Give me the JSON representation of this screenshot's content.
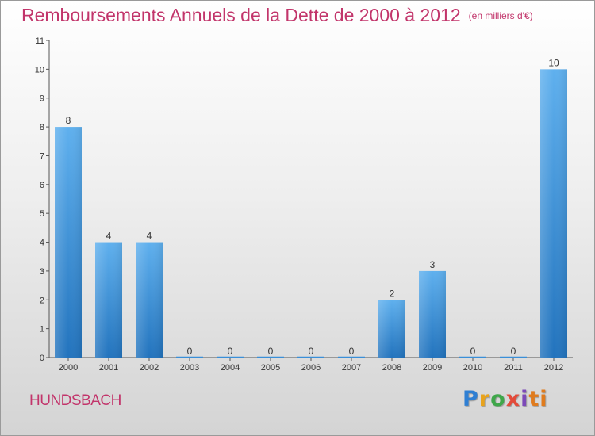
{
  "chart_data": {
    "type": "bar",
    "title": "Remboursements Annuels de la Dette de 2000 à 2012",
    "subtitle": "(en milliers d'€)",
    "categories": [
      "2000",
      "2001",
      "2002",
      "2003",
      "2004",
      "2005",
      "2006",
      "2007",
      "2008",
      "2009",
      "2010",
      "2011",
      "2012"
    ],
    "values": [
      8,
      4,
      4,
      0,
      0,
      0,
      0,
      0,
      2,
      3,
      0,
      0,
      10
    ],
    "data_labels": [
      "8",
      "4",
      "4",
      "0",
      "0",
      "0",
      "0",
      "0",
      "2",
      "3",
      "0",
      "0",
      "10"
    ],
    "yticks": [
      "0",
      "1",
      "2",
      "3",
      "4",
      "5",
      "6",
      "7",
      "8",
      "9",
      "10",
      "11"
    ],
    "ylim": [
      0,
      11
    ],
    "grid": false,
    "bar_color": "#3a8fd8"
  },
  "footer": {
    "commune": "HUNDSBACH",
    "brand_letters": [
      "P",
      "r",
      "o",
      "x",
      "i",
      "ti"
    ]
  }
}
